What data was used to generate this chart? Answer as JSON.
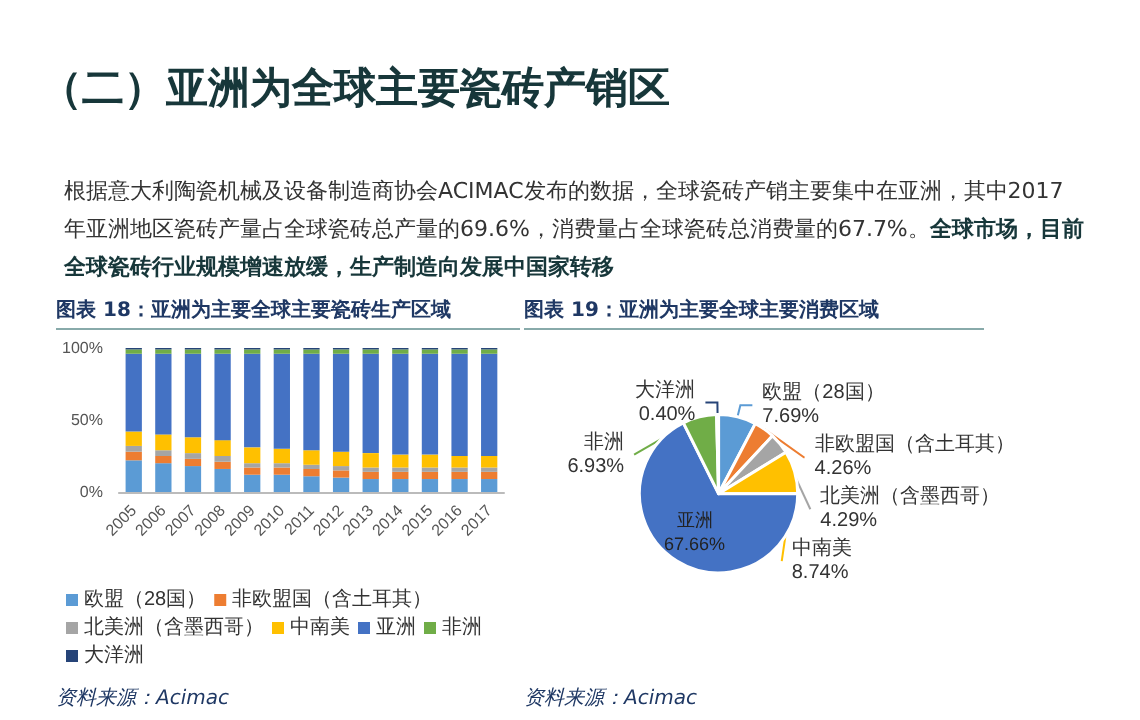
{
  "chart_data": [
    {
      "type": "other",
      "title": "（二）亚洲为全球主要瓷砖产销区",
      "annotations": [
        "根据意大利陶瓷机械及设备制造商协会ACIMAC发布的数据，全球瓷砖产销主要集中在亚洲，其中2017年亚洲地区瓷砖产量占全球瓷砖总产量的69.6%，消费量占全球瓷砖总消费量的67.7%。",
        "全球市场，目前全球瓷砖行业规模增速放缓，生产制造向发展中国家转移"
      ]
    },
    {
      "type": "bar",
      "stacked": true,
      "title": "图表 18：亚洲为主要全球主要瓷砖生产区域",
      "categories": [
        "2005",
        "2006",
        "2007",
        "2008",
        "2009",
        "2010",
        "2011",
        "2012",
        "2013",
        "2014",
        "2015",
        "2016",
        "2017"
      ],
      "series": [
        {
          "name": "欧盟（28国）",
          "color": "#5b9bd5",
          "values": [
            22,
            20,
            18,
            16,
            12,
            12,
            11,
            10,
            9,
            9,
            9,
            9,
            9
          ]
        },
        {
          "name": "非欧盟国（含土耳其）",
          "color": "#ed7d31",
          "values": [
            6,
            5,
            5,
            5,
            5,
            5,
            5,
            5,
            5,
            5,
            5,
            5,
            5
          ]
        },
        {
          "name": "北美洲（含墨西哥）",
          "color": "#a5a5a5",
          "values": [
            4,
            4,
            4,
            4,
            3,
            3,
            3,
            3,
            3,
            3,
            3,
            3,
            3
          ]
        },
        {
          "name": "中南美",
          "color": "#ffc000",
          "values": [
            10,
            11,
            11,
            11,
            11,
            10,
            10,
            10,
            10,
            9,
            9,
            8,
            8
          ]
        },
        {
          "name": "亚洲",
          "color": "#4472c4",
          "values": [
            54,
            56,
            58,
            60,
            65,
            66,
            67,
            68,
            69,
            70,
            70,
            71,
            71
          ]
        },
        {
          "name": "非洲",
          "color": "#70ad47",
          "values": [
            3,
            3,
            3,
            3,
            3,
            3,
            3,
            3,
            3,
            3,
            3,
            3,
            3
          ]
        },
        {
          "name": "大洋洲",
          "color": "#264478",
          "values": [
            1,
            1,
            1,
            1,
            1,
            1,
            1,
            1,
            1,
            1,
            1,
            1,
            1
          ]
        }
      ],
      "ylim": [
        0,
        100
      ],
      "yticks": [
        {
          "value": 0,
          "label": "0%"
        },
        {
          "value": 50,
          "label": "50%"
        },
        {
          "value": 100,
          "label": "100%"
        }
      ],
      "legend": "bottom",
      "annotations": [
        "资料来源：Acimac"
      ]
    },
    {
      "type": "pie",
      "title": "图表 19：亚洲为主要全球主要消费区域",
      "categories": [
        "欧盟（28国）",
        "非欧盟国（含土耳其）",
        "北美洲（含墨西哥）",
        "中南美",
        "亚洲",
        "非洲",
        "大洋洲"
      ],
      "values": [
        7.69,
        4.26,
        4.29,
        8.74,
        67.66,
        6.93,
        0.4
      ],
      "value_labels": [
        "7.69%",
        "4.26%",
        "4.29%",
        "8.74%",
        "67.66%",
        "6.93%",
        "0.40%"
      ],
      "colors": [
        "#5b9bd5",
        "#ed7d31",
        "#a5a5a5",
        "#ffc000",
        "#4472c4",
        "#70ad47",
        "#264478"
      ],
      "annotations": [
        "资料来源：Acimac"
      ]
    }
  ]
}
